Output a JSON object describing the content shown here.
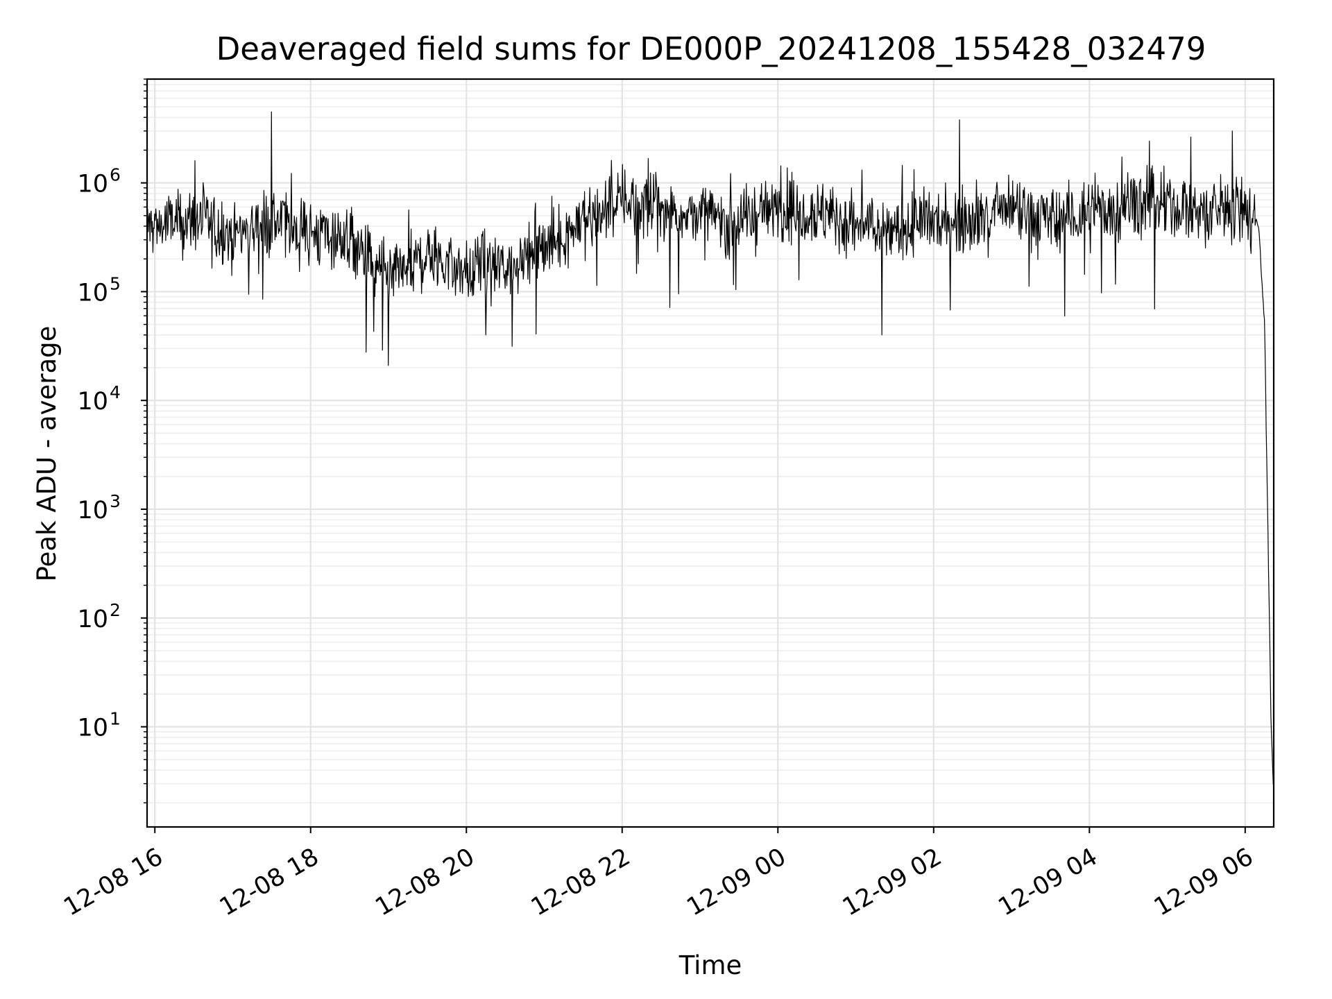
{
  "chart_data": {
    "type": "line",
    "title": "Deaveraged field sums for DE000P_20241208_155428_032479",
    "xlabel": "Time",
    "ylabel": "Peak ADU - average",
    "yscale": "log",
    "ylim": [
      1.2,
      9000000
    ],
    "xlim": [
      "12-08 15:54",
      "12-09 06:22"
    ],
    "grid": true,
    "x_ticks": [
      {
        "label": "12-08 16",
        "value": "12-08 16:00"
      },
      {
        "label": "12-08 18",
        "value": "12-08 18:00"
      },
      {
        "label": "12-08 20",
        "value": "12-08 20:00"
      },
      {
        "label": "12-08 22",
        "value": "12-08 22:00"
      },
      {
        "label": "12-09 00",
        "value": "12-09 00:00"
      },
      {
        "label": "12-09 02",
        "value": "12-09 02:00"
      },
      {
        "label": "12-09 04",
        "value": "12-09 04:00"
      },
      {
        "label": "12-09 06",
        "value": "12-09 06:00"
      }
    ],
    "y_ticks": [
      {
        "base": "10",
        "exp": "1",
        "value": 10
      },
      {
        "base": "10",
        "exp": "2",
        "value": 100
      },
      {
        "base": "10",
        "exp": "3",
        "value": 1000
      },
      {
        "base": "10",
        "exp": "4",
        "value": 10000
      },
      {
        "base": "10",
        "exp": "5",
        "value": 100000
      },
      {
        "base": "10",
        "exp": "6",
        "value": 1000000
      }
    ],
    "series": [
      {
        "color": "#000000",
        "x": [
          "12-08 15:54",
          "12-08 16:30",
          "12-08 17:00",
          "12-08 17:30",
          "12-08 18:00",
          "12-08 18:30",
          "12-08 19:00",
          "12-08 19:30",
          "12-08 20:00",
          "12-08 20:30",
          "12-08 21:00",
          "12-08 21:30",
          "12-08 22:00",
          "12-08 22:30",
          "12-08 23:00",
          "12-08 23:30",
          "12-09 00:00",
          "12-09 00:30",
          "12-09 01:00",
          "12-09 01:30",
          "12-09 02:00",
          "12-09 02:30",
          "12-09 03:00",
          "12-09 03:30",
          "12-09 04:00",
          "12-09 04:30",
          "12-09 05:00",
          "12-09 05:30",
          "12-09 06:00",
          "12-09 06:10",
          "12-09 06:15",
          "12-09 06:18",
          "12-09 06:20",
          "12-09 06:22"
        ],
        "y": [
          400000,
          450000,
          350000,
          450000,
          350000,
          300000,
          120000,
          220000,
          150000,
          170000,
          250000,
          450000,
          700000,
          600000,
          500000,
          450000,
          600000,
          550000,
          400000,
          350000,
          450000,
          500000,
          550000,
          450000,
          500000,
          650000,
          600000,
          550000,
          600000,
          450000,
          50000,
          300,
          10,
          2
        ]
      }
    ],
    "peaks": [
      {
        "x": "12-08 17:30",
        "y": 4500000
      },
      {
        "x": "12-09 02:20",
        "y": 3800000
      },
      {
        "x": "12-09 05:50",
        "y": 3000000
      }
    ],
    "dips": [
      {
        "x": "12-08 19:00",
        "y": 21000
      },
      {
        "x": "12-09 01:20",
        "y": 40000
      },
      {
        "x": "12-08 20:15",
        "y": 40000
      }
    ]
  }
}
